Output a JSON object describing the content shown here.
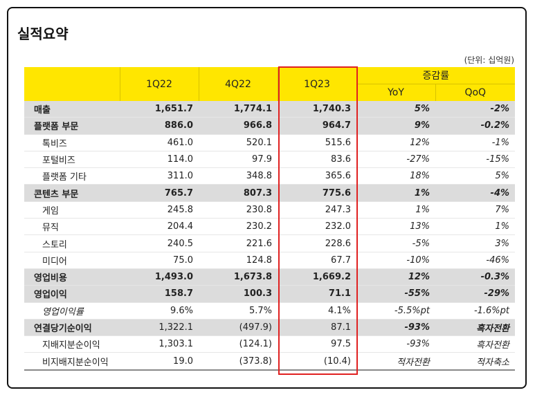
{
  "title": "실적요약",
  "unit_note": "(단위: 십억원)",
  "columns": {
    "c1": "1Q22",
    "c2": "4Q22",
    "c3": "1Q23",
    "change_group": "증감률",
    "yoy": "YoY",
    "qoq": "QoQ"
  },
  "rows": [
    {
      "label": "매출",
      "q122": "1,651.7",
      "q422": "1,774.1",
      "q123": "1,740.3",
      "yoy": "5%",
      "qoq": "-2%"
    },
    {
      "label": "플랫폼 부문",
      "q122": "886.0",
      "q422": "966.8",
      "q123": "964.7",
      "yoy": "9%",
      "qoq": "-0.2%"
    },
    {
      "label": "톡비즈",
      "q122": "461.0",
      "q422": "520.1",
      "q123": "515.6",
      "yoy": "12%",
      "qoq": "-1%"
    },
    {
      "label": "포털비즈",
      "q122": "114.0",
      "q422": "97.9",
      "q123": "83.6",
      "yoy": "-27%",
      "qoq": "-15%"
    },
    {
      "label": "플랫폼 기타",
      "q122": "311.0",
      "q422": "348.8",
      "q123": "365.6",
      "yoy": "18%",
      "qoq": "5%"
    },
    {
      "label": "콘텐츠 부문",
      "q122": "765.7",
      "q422": "807.3",
      "q123": "775.6",
      "yoy": "1%",
      "qoq": "-4%"
    },
    {
      "label": "게임",
      "q122": "245.8",
      "q422": "230.8",
      "q123": "247.3",
      "yoy": "1%",
      "qoq": "7%"
    },
    {
      "label": "뮤직",
      "q122": "204.4",
      "q422": "230.2",
      "q123": "232.0",
      "yoy": "13%",
      "qoq": "1%"
    },
    {
      "label": "스토리",
      "q122": "240.5",
      "q422": "221.6",
      "q123": "228.6",
      "yoy": "-5%",
      "qoq": "3%"
    },
    {
      "label": "미디어",
      "q122": "75.0",
      "q422": "124.8",
      "q123": "67.7",
      "yoy": "-10%",
      "qoq": "-46%"
    },
    {
      "label": "영업비용",
      "q122": "1,493.0",
      "q422": "1,673.8",
      "q123": "1,669.2",
      "yoy": "12%",
      "qoq": "-0.3%"
    },
    {
      "label": "영업이익",
      "q122": "158.7",
      "q422": "100.3",
      "q123": "71.1",
      "yoy": "-55%",
      "qoq": "-29%"
    },
    {
      "label": "영업이익률",
      "q122": "9.6%",
      "q422": "5.7%",
      "q123": "4.1%",
      "yoy": "-5.5%pt",
      "qoq": "-1.6%pt"
    },
    {
      "label": "연결당기순이익",
      "q122": "1,322.1",
      "q422": "(497.9)",
      "q123": "87.1",
      "yoy": "-93%",
      "qoq": "흑자전환"
    },
    {
      "label": "지배지분순이익",
      "q122": "1,303.1",
      "q422": "(124.1)",
      "q123": "97.5",
      "yoy": "-93%",
      "qoq": "흑자전환"
    },
    {
      "label": "비지배지분순이익",
      "q122": "19.0",
      "q422": "(373.8)",
      "q123": "(10.4)",
      "yoy": "적자전환",
      "qoq": "적자축소"
    }
  ]
}
